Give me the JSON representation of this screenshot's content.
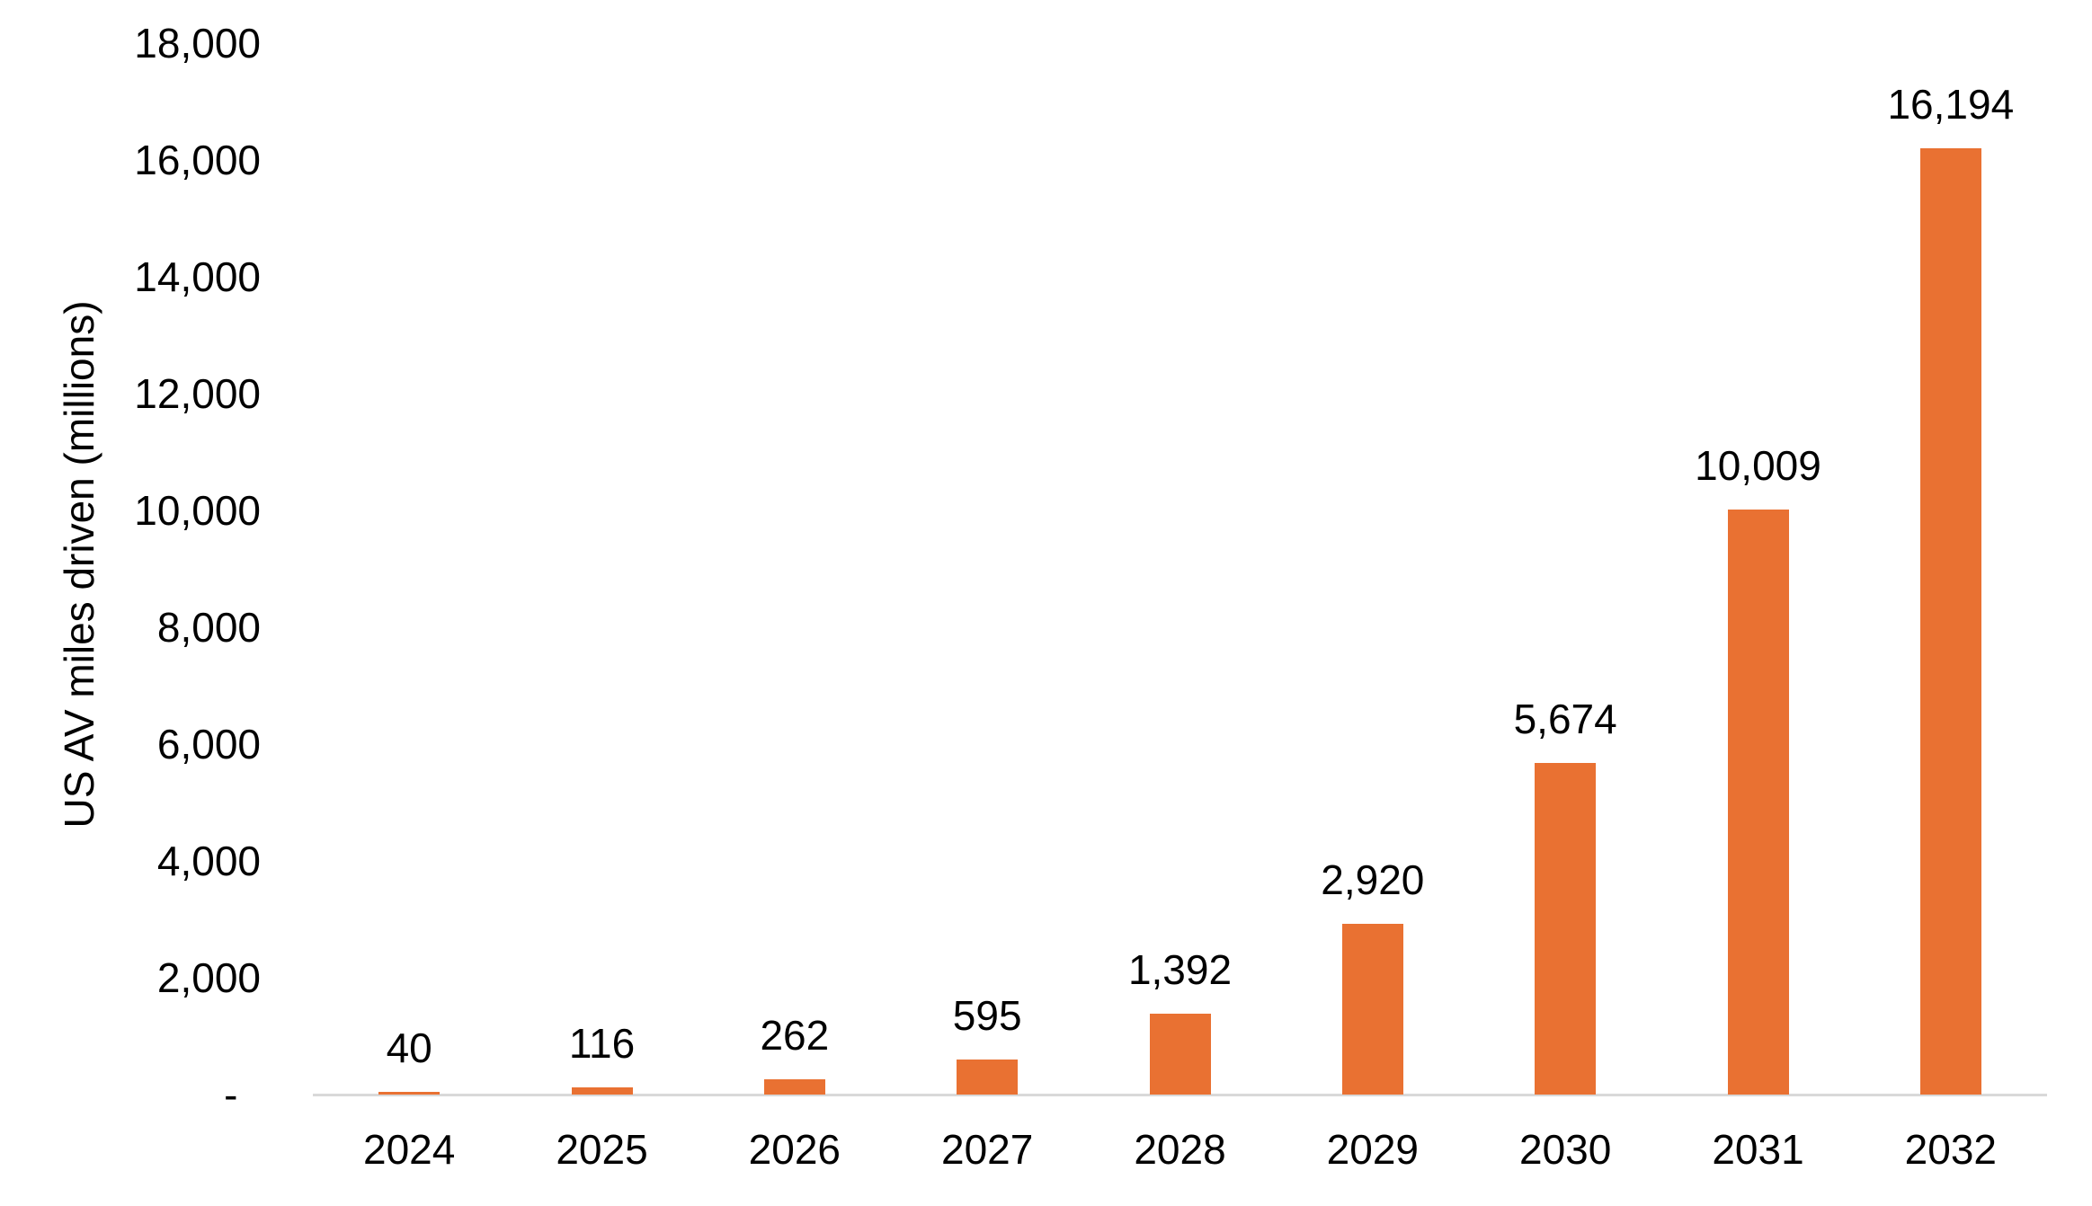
{
  "chart_data": {
    "type": "bar",
    "title": "",
    "xlabel": "",
    "ylabel": "US AV miles driven (millions)",
    "categories": [
      "2024",
      "2025",
      "2026",
      "2027",
      "2028",
      "2029",
      "2030",
      "2031",
      "2032"
    ],
    "values": [
      40,
      116,
      262,
      595,
      1392,
      2920,
      5674,
      10009,
      16194
    ],
    "value_labels": [
      "40",
      "116",
      "262",
      "595",
      "1,392",
      "2,920",
      "5,674",
      "10,009",
      "16,194"
    ],
    "series_name": "US AV miles driven",
    "ylim": [
      0,
      18000
    ],
    "ytick_interval": 2000,
    "yticks": [
      {
        "value": 0,
        "label": "-  "
      },
      {
        "value": 2000,
        "label": "2,000"
      },
      {
        "value": 4000,
        "label": "4,000"
      },
      {
        "value": 6000,
        "label": "6,000"
      },
      {
        "value": 8000,
        "label": "8,000"
      },
      {
        "value": 10000,
        "label": "10,000"
      },
      {
        "value": 12000,
        "label": "12,000"
      },
      {
        "value": 14000,
        "label": "14,000"
      },
      {
        "value": 16000,
        "label": "16,000"
      },
      {
        "value": 18000,
        "label": "18,000"
      }
    ],
    "grid": false,
    "legend_position": "none",
    "data_labels": "outside-end",
    "colors": {
      "bar": "#E97132",
      "axis_line": "#D9D9D9",
      "text": "#000000",
      "background": "#FFFFFF"
    }
  }
}
